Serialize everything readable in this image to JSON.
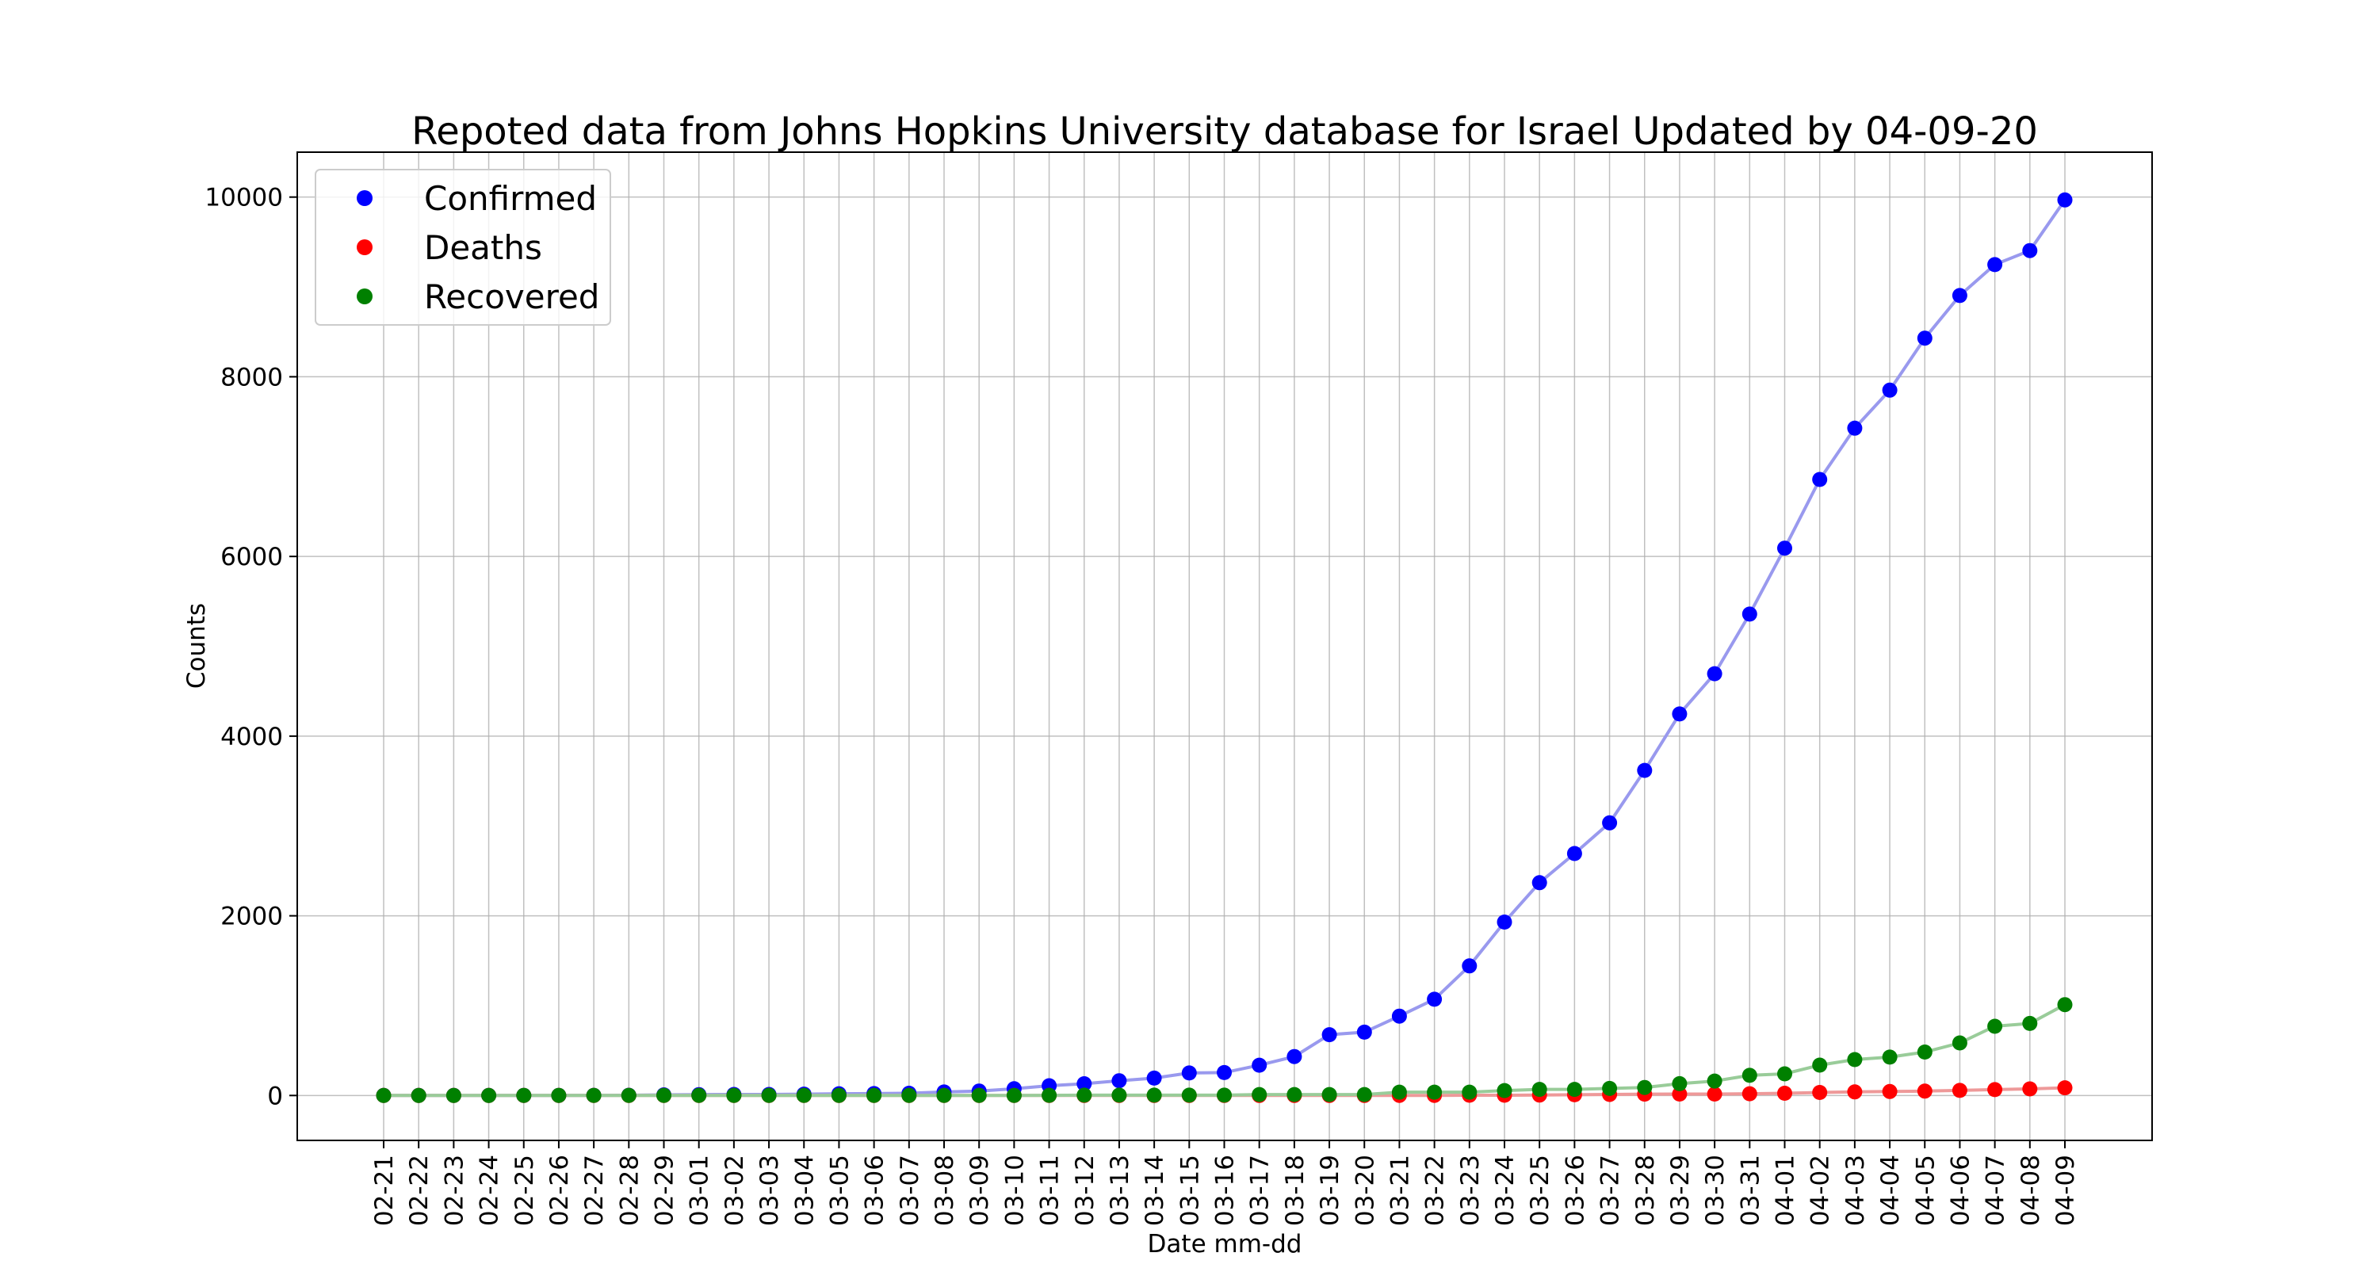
{
  "chart_data": {
    "type": "line",
    "title": "Repoted data from Johns Hopkins University database for Israel Updated by 04-09-20",
    "xlabel": "Date mm-dd",
    "ylabel": "Counts",
    "ylim": [
      -500,
      10500
    ],
    "yticks": [
      0,
      2000,
      4000,
      6000,
      8000,
      10000
    ],
    "grid": true,
    "legend_position": "top-left",
    "categories": [
      "02-21",
      "02-22",
      "02-23",
      "02-24",
      "02-25",
      "02-26",
      "02-27",
      "02-28",
      "02-29",
      "03-01",
      "03-02",
      "03-03",
      "03-04",
      "03-05",
      "03-06",
      "03-07",
      "03-08",
      "03-09",
      "03-10",
      "03-11",
      "03-12",
      "03-13",
      "03-14",
      "03-15",
      "03-16",
      "03-17",
      "03-18",
      "03-19",
      "03-20",
      "03-21",
      "03-22",
      "03-23",
      "03-24",
      "03-25",
      "03-26",
      "03-27",
      "03-28",
      "03-29",
      "03-30",
      "03-31",
      "04-01",
      "04-02",
      "04-03",
      "04-04",
      "04-05",
      "04-06",
      "04-07",
      "04-08",
      "04-09"
    ],
    "series": [
      {
        "name": "Confirmed",
        "color": "#0000ff",
        "line_color": "#9999ee",
        "values": [
          1,
          1,
          1,
          1,
          1,
          1,
          2,
          3,
          7,
          10,
          12,
          12,
          15,
          20,
          21,
          25,
          39,
          50,
          75,
          109,
          131,
          164,
          193,
          251,
          255,
          337,
          433,
          677,
          705,
          883,
          1071,
          1442,
          1930,
          2369,
          2693,
          3035,
          3619,
          4247,
          4695,
          5358,
          6092,
          6857,
          7428,
          7851,
          8430,
          8904,
          9248,
          9404,
          9968
        ]
      },
      {
        "name": "Deaths",
        "color": "#ff0000",
        "line_color": "#ee9999",
        "values": [
          0,
          0,
          0,
          0,
          0,
          0,
          0,
          0,
          0,
          0,
          0,
          0,
          0,
          0,
          0,
          0,
          0,
          0,
          0,
          0,
          0,
          0,
          0,
          0,
          0,
          0,
          0,
          0,
          0,
          1,
          1,
          3,
          3,
          5,
          8,
          12,
          15,
          16,
          16,
          20,
          25,
          34,
          40,
          44,
          49,
          57,
          65,
          73,
          86
        ]
      },
      {
        "name": "Recovered",
        "color": "#008000",
        "line_color": "#99cc99",
        "values": [
          0,
          0,
          0,
          0,
          1,
          1,
          1,
          1,
          1,
          1,
          1,
          1,
          1,
          1,
          1,
          1,
          1,
          1,
          1,
          2,
          4,
          4,
          4,
          4,
          4,
          11,
          11,
          11,
          11,
          37,
          37,
          37,
          55,
          68,
          68,
          79,
          89,
          132,
          161,
          224,
          241,
          338,
          400,
          427,
          484,
          585,
          770,
          802,
          1011
        ]
      }
    ]
  }
}
